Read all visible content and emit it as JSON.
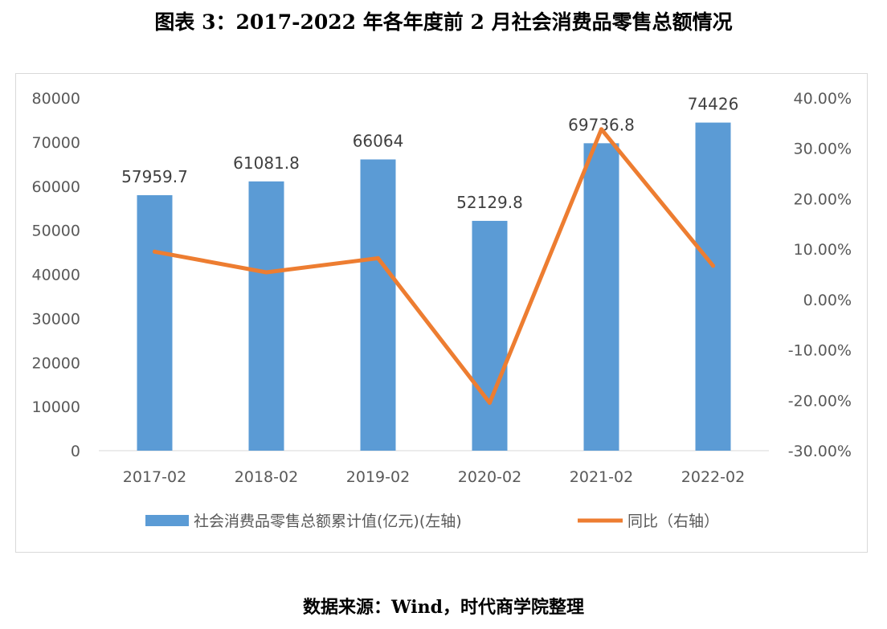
{
  "title": "图表 3：2017-2022 年各年度前 2 月社会消费品零售总额情况",
  "source": "数据来源：Wind，时代商学院整理",
  "colors": {
    "bar": "#5b9bd5",
    "line": "#ed7d31",
    "axis_text": "#595959",
    "grid": "#d9d9d9"
  },
  "chart_data": {
    "type": "bar",
    "categories": [
      "2017-02",
      "2018-02",
      "2019-02",
      "2020-02",
      "2021-02",
      "2022-02"
    ],
    "series": [
      {
        "name": "社会消费品零售总额累计值(亿元)(左轴)",
        "type": "bar",
        "axis": "left",
        "values": [
          57959.7,
          61081.8,
          66064,
          52129.8,
          69736.8,
          74426
        ],
        "data_labels": [
          "57959.7",
          "61081.8",
          "66064",
          "52129.8",
          "69736.8",
          "74426"
        ]
      },
      {
        "name": "同比（右轴）",
        "type": "line",
        "axis": "right",
        "values": [
          9.5,
          5.4,
          8.2,
          -20.5,
          33.8,
          6.7
        ]
      }
    ],
    "y_left": {
      "min": 0,
      "max": 80000,
      "ticks": [
        "0",
        "10000",
        "20000",
        "30000",
        "40000",
        "50000",
        "60000",
        "70000",
        "80000"
      ]
    },
    "y_right": {
      "min": -30,
      "max": 40,
      "ticks": [
        "-30.00%",
        "-20.00%",
        "-10.00%",
        "0.00%",
        "10.00%",
        "20.00%",
        "30.00%",
        "40.00%"
      ]
    },
    "grid": false,
    "legend_position": "bottom"
  }
}
